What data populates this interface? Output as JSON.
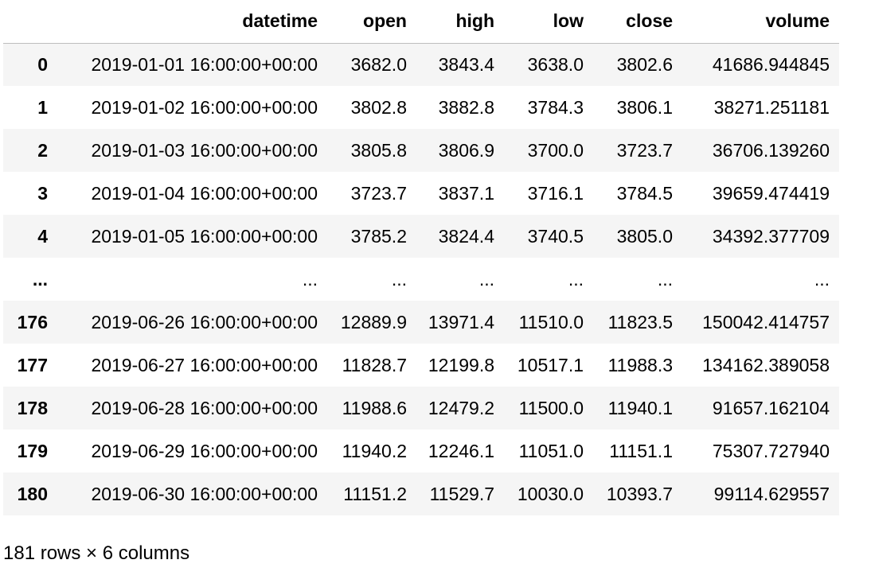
{
  "table": {
    "columns": [
      "",
      "datetime",
      "open",
      "high",
      "low",
      "close",
      "volume"
    ],
    "rows": [
      [
        "0",
        "2019-01-01 16:00:00+00:00",
        "3682.0",
        "3843.4",
        "3638.0",
        "3802.6",
        "41686.944845"
      ],
      [
        "1",
        "2019-01-02 16:00:00+00:00",
        "3802.8",
        "3882.8",
        "3784.3",
        "3806.1",
        "38271.251181"
      ],
      [
        "2",
        "2019-01-03 16:00:00+00:00",
        "3805.8",
        "3806.9",
        "3700.0",
        "3723.7",
        "36706.139260"
      ],
      [
        "3",
        "2019-01-04 16:00:00+00:00",
        "3723.7",
        "3837.1",
        "3716.1",
        "3784.5",
        "39659.474419"
      ],
      [
        "4",
        "2019-01-05 16:00:00+00:00",
        "3785.2",
        "3824.4",
        "3740.5",
        "3805.0",
        "34392.377709"
      ],
      [
        "...",
        "...",
        "...",
        "...",
        "...",
        "...",
        "..."
      ],
      [
        "176",
        "2019-06-26 16:00:00+00:00",
        "12889.9",
        "13971.4",
        "11510.0",
        "11823.5",
        "150042.414757"
      ],
      [
        "177",
        "2019-06-27 16:00:00+00:00",
        "11828.7",
        "12199.8",
        "10517.1",
        "11988.3",
        "134162.389058"
      ],
      [
        "178",
        "2019-06-28 16:00:00+00:00",
        "11988.6",
        "12479.2",
        "11500.0",
        "11940.1",
        "91657.162104"
      ],
      [
        "179",
        "2019-06-29 16:00:00+00:00",
        "11940.2",
        "12246.1",
        "11051.0",
        "11151.1",
        "75307.727940"
      ],
      [
        "180",
        "2019-06-30 16:00:00+00:00",
        "11151.2",
        "11529.7",
        "10030.0",
        "10393.7",
        "99114.629557"
      ]
    ]
  },
  "caption": "181 rows × 6 columns"
}
